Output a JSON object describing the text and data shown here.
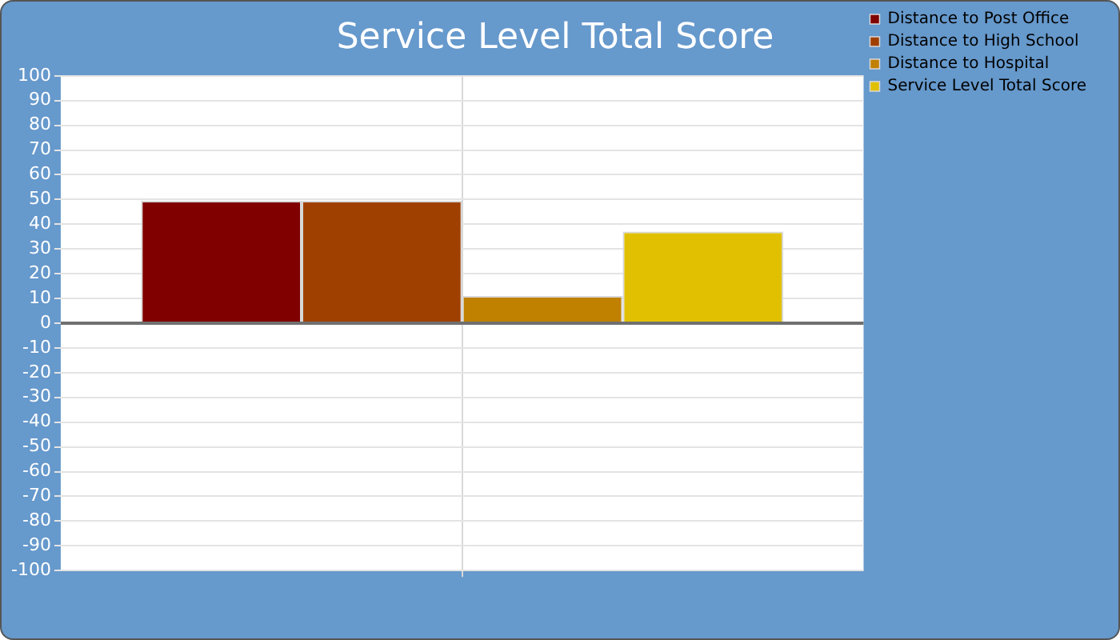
{
  "chart_data": {
    "type": "bar",
    "title": "Service Level Total Score",
    "categories": [
      null
    ],
    "series": [
      {
        "name": "Distance to Post Office",
        "color": "#800000",
        "values": [
          49.5
        ]
      },
      {
        "name": "Distance to High School",
        "color": "#a04000",
        "values": [
          49.5
        ]
      },
      {
        "name": "Distance to Hospital",
        "color": "#c08000",
        "values": [
          11
        ]
      },
      {
        "name": "Service Level Total Score",
        "color": "#e0c000",
        "values": [
          37
        ]
      }
    ],
    "ylim": [
      -100,
      100
    ],
    "yticks": [
      -100,
      -90,
      -80,
      -70,
      -60,
      -50,
      -40,
      -30,
      -20,
      -10,
      0,
      10,
      20,
      30,
      40,
      50,
      60,
      70,
      80,
      90,
      100
    ],
    "grid": true,
    "legend": "right"
  }
}
